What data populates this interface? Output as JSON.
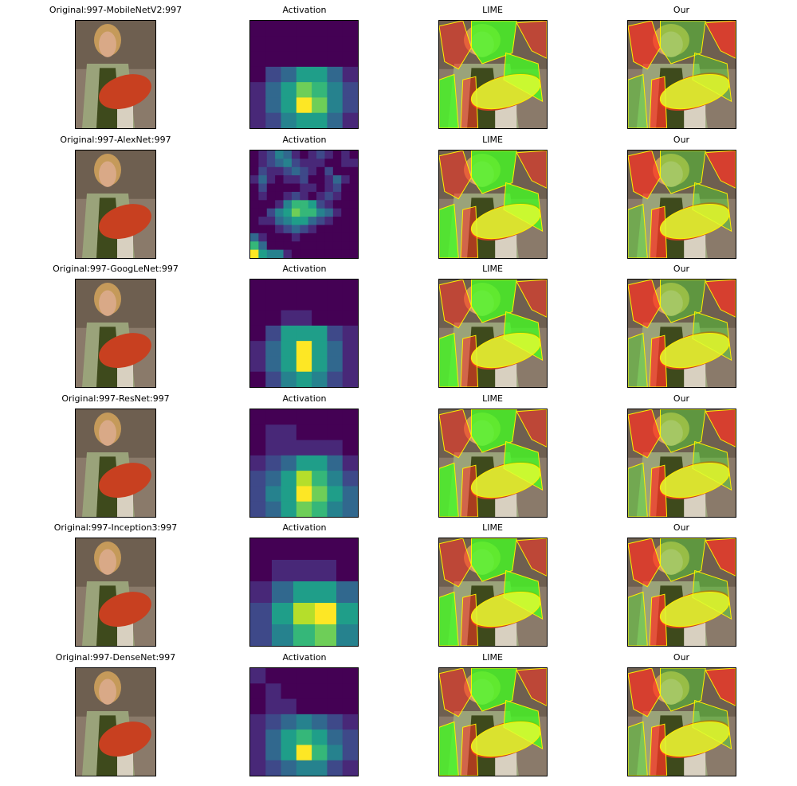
{
  "rows": [
    {
      "original_title": "Original:997-MobileNetV2:997",
      "activation_title": "Activation",
      "lime_title": "LIME",
      "our_title": "Our",
      "activation_grid": [
        [
          0.0,
          0.0,
          0.0,
          0.0,
          0.0,
          0.0,
          0.0
        ],
        [
          0.0,
          0.0,
          0.0,
          0.0,
          0.0,
          0.0,
          0.0
        ],
        [
          0.0,
          0.0,
          0.0,
          0.05,
          0.0,
          0.0,
          0.0
        ],
        [
          0.05,
          0.2,
          0.35,
          0.55,
          0.55,
          0.35,
          0.15
        ],
        [
          0.15,
          0.3,
          0.5,
          0.75,
          0.7,
          0.45,
          0.25
        ],
        [
          0.15,
          0.35,
          0.6,
          1.0,
          0.75,
          0.45,
          0.25
        ],
        [
          0.1,
          0.25,
          0.45,
          0.6,
          0.55,
          0.35,
          0.15
        ]
      ]
    },
    {
      "original_title": "Original:997-AlexNet:997",
      "activation_title": "Activation",
      "lime_title": "LIME",
      "our_title": "Our",
      "activation_grid": [
        [
          0.05,
          0.1,
          0.2,
          0.45,
          0.3,
          0.15,
          0.05,
          0.15,
          0.2,
          0.1,
          0.05,
          0.15,
          0.05
        ],
        [
          0.0,
          0.15,
          0.2,
          0.3,
          0.4,
          0.2,
          0.15,
          0.1,
          0.15,
          0.05,
          0.05,
          0.1,
          0.15
        ],
        [
          0.05,
          0.25,
          0.15,
          0.1,
          0.25,
          0.3,
          0.2,
          0.1,
          0.05,
          0.2,
          0.05,
          0.0,
          0.05
        ],
        [
          0.15,
          0.3,
          0.1,
          0.05,
          0.1,
          0.15,
          0.25,
          0.05,
          0.0,
          0.1,
          0.3,
          0.1,
          0.05
        ],
        [
          0.05,
          0.2,
          0.05,
          0.0,
          0.05,
          0.05,
          0.15,
          0.1,
          0.05,
          0.15,
          0.25,
          0.05,
          0.0
        ],
        [
          0.0,
          0.1,
          0.05,
          0.05,
          0.1,
          0.2,
          0.1,
          0.05,
          0.1,
          0.2,
          0.15,
          0.05,
          0.0
        ],
        [
          0.0,
          0.05,
          0.05,
          0.15,
          0.4,
          0.65,
          0.7,
          0.55,
          0.25,
          0.15,
          0.05,
          0.0,
          0.0
        ],
        [
          0.05,
          0.05,
          0.2,
          0.45,
          0.55,
          0.8,
          0.65,
          0.7,
          0.45,
          0.3,
          0.1,
          0.0,
          0.05
        ],
        [
          0.0,
          0.1,
          0.15,
          0.3,
          0.4,
          0.5,
          0.55,
          0.35,
          0.25,
          0.15,
          0.05,
          0.0,
          0.0
        ],
        [
          0.0,
          0.0,
          0.05,
          0.1,
          0.2,
          0.3,
          0.25,
          0.15,
          0.05,
          0.0,
          0.0,
          0.0,
          0.0
        ],
        [
          0.3,
          0.1,
          0.0,
          0.05,
          0.05,
          0.1,
          0.05,
          0.0,
          0.0,
          0.0,
          0.0,
          0.0,
          0.0
        ],
        [
          0.7,
          0.3,
          0.05,
          0.0,
          0.0,
          0.0,
          0.0,
          0.0,
          0.0,
          0.0,
          0.0,
          0.0,
          0.0
        ],
        [
          0.95,
          0.6,
          0.45,
          0.4,
          0.15,
          0.05,
          0.0,
          0.0,
          0.0,
          0.0,
          0.0,
          0.05,
          0.0
        ]
      ]
    },
    {
      "original_title": "Original:997-GoogLeNet:997",
      "activation_title": "Activation",
      "lime_title": "LIME",
      "our_title": "Our",
      "activation_grid": [
        [
          0.0,
          0.0,
          0.0,
          0.0,
          0.0,
          0.0,
          0.0
        ],
        [
          0.0,
          0.0,
          0.0,
          0.0,
          0.0,
          0.0,
          0.0
        ],
        [
          0.0,
          0.05,
          0.1,
          0.1,
          0.05,
          0.0,
          0.0
        ],
        [
          0.05,
          0.2,
          0.5,
          0.55,
          0.5,
          0.25,
          0.1
        ],
        [
          0.1,
          0.3,
          0.6,
          1.0,
          0.6,
          0.35,
          0.15
        ],
        [
          0.1,
          0.3,
          0.6,
          0.95,
          0.6,
          0.35,
          0.15
        ],
        [
          0.05,
          0.2,
          0.4,
          0.5,
          0.4,
          0.25,
          0.1
        ]
      ]
    },
    {
      "original_title": "Original:997-ResNet:997",
      "activation_title": "Activation",
      "lime_title": "LIME",
      "our_title": "Our",
      "activation_grid": [
        [
          0.05,
          0.05,
          0.05,
          0.0,
          0.0,
          0.05,
          0.05
        ],
        [
          0.05,
          0.1,
          0.1,
          0.05,
          0.05,
          0.05,
          0.0
        ],
        [
          0.05,
          0.1,
          0.15,
          0.15,
          0.1,
          0.1,
          0.05
        ],
        [
          0.1,
          0.2,
          0.35,
          0.55,
          0.5,
          0.3,
          0.15
        ],
        [
          0.2,
          0.35,
          0.55,
          0.85,
          0.65,
          0.4,
          0.25
        ],
        [
          0.25,
          0.4,
          0.6,
          0.95,
          0.75,
          0.5,
          0.3
        ],
        [
          0.2,
          0.3,
          0.5,
          0.75,
          0.65,
          0.45,
          0.3
        ]
      ]
    },
    {
      "original_title": "Original:997-Inception3:997",
      "activation_title": "Activation",
      "lime_title": "LIME",
      "our_title": "Our",
      "activation_grid": [
        [
          0.0,
          0.0,
          0.0,
          0.0,
          0.0
        ],
        [
          0.05,
          0.1,
          0.15,
          0.1,
          0.05
        ],
        [
          0.1,
          0.3,
          0.5,
          0.5,
          0.3
        ],
        [
          0.2,
          0.55,
          0.9,
          0.95,
          0.55
        ],
        [
          0.2,
          0.45,
          0.7,
          0.75,
          0.45
        ]
      ]
    },
    {
      "original_title": "Original:997-DenseNet:997",
      "activation_title": "Activation",
      "lime_title": "LIME",
      "our_title": "Our",
      "activation_grid": [
        [
          0.1,
          0.05,
          0.0,
          0.0,
          0.0,
          0.05,
          0.05
        ],
        [
          0.05,
          0.1,
          0.05,
          0.05,
          0.05,
          0.0,
          0.0
        ],
        [
          0.05,
          0.1,
          0.1,
          0.05,
          0.05,
          0.0,
          0.0
        ],
        [
          0.1,
          0.2,
          0.3,
          0.4,
          0.35,
          0.2,
          0.1
        ],
        [
          0.15,
          0.3,
          0.5,
          0.7,
          0.6,
          0.35,
          0.2
        ],
        [
          0.15,
          0.35,
          0.6,
          1.0,
          0.65,
          0.4,
          0.2
        ],
        [
          0.1,
          0.25,
          0.35,
          0.45,
          0.4,
          0.25,
          0.15
        ]
      ]
    }
  ],
  "colors": {
    "viridis": [
      "#440154",
      "#482878",
      "#3e4989",
      "#31688e",
      "#26828e",
      "#1f9e89",
      "#35b779",
      "#6ece58",
      "#b5de2b",
      "#fde725"
    ],
    "lime_green": "#44ff22",
    "lime_yellow": "#ddff33",
    "mask_red": "#ff3322",
    "boundary": "#ffee00",
    "mushroom": "#c84020",
    "sweater": "#3e4a1c",
    "skin": "#d9a987",
    "hair": "#c59a5a",
    "jacket": "#9aa37a",
    "background_photo": "#8a7a6a"
  }
}
